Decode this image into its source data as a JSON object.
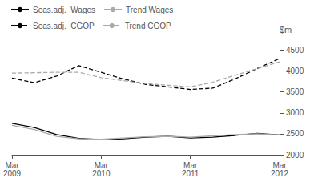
{
  "chart_data": {
    "type": "line",
    "y_label": "$m",
    "categories": [
      "Mar\n2009",
      null,
      null,
      null,
      "Mar\n2010",
      null,
      null,
      null,
      "Mar\n2011",
      null,
      null,
      null,
      "Mar\n2012"
    ],
    "series": [
      {
        "name": "Seas.adj.  Wages",
        "color": "#000000",
        "line_style": "solid",
        "values": [
          2750,
          2650,
          2480,
          2390,
          2360,
          2380,
          2420,
          2440,
          2400,
          2420,
          2460,
          2510,
          2470
        ]
      },
      {
        "name": "Trend Wages",
        "color": "#aaaaaa",
        "line_style": "solid",
        "values": [
          2700,
          2600,
          2440,
          2380,
          2370,
          2400,
          2430,
          2440,
          2420,
          2450,
          2480,
          2500,
          2470
        ]
      },
      {
        "name": "Seas.adj.  CGOP",
        "color": "#000000",
        "line_style": "dashed",
        "values": [
          3830,
          3720,
          3880,
          4130,
          3970,
          3810,
          3680,
          3620,
          3560,
          3590,
          3810,
          4060,
          4300
        ]
      },
      {
        "name": "Trend CGOP",
        "color": "#aaaaaa",
        "line_style": "dashed",
        "values": [
          3950,
          3960,
          3970,
          3970,
          3840,
          3770,
          3700,
          3660,
          3620,
          3730,
          3900,
          4060,
          4220
        ]
      }
    ],
    "ylim": [
      2000,
      4700
    ],
    "yticks": [
      2000,
      2500,
      3000,
      3500,
      4000,
      4500
    ],
    "grid": false,
    "legend": "upper right"
  }
}
